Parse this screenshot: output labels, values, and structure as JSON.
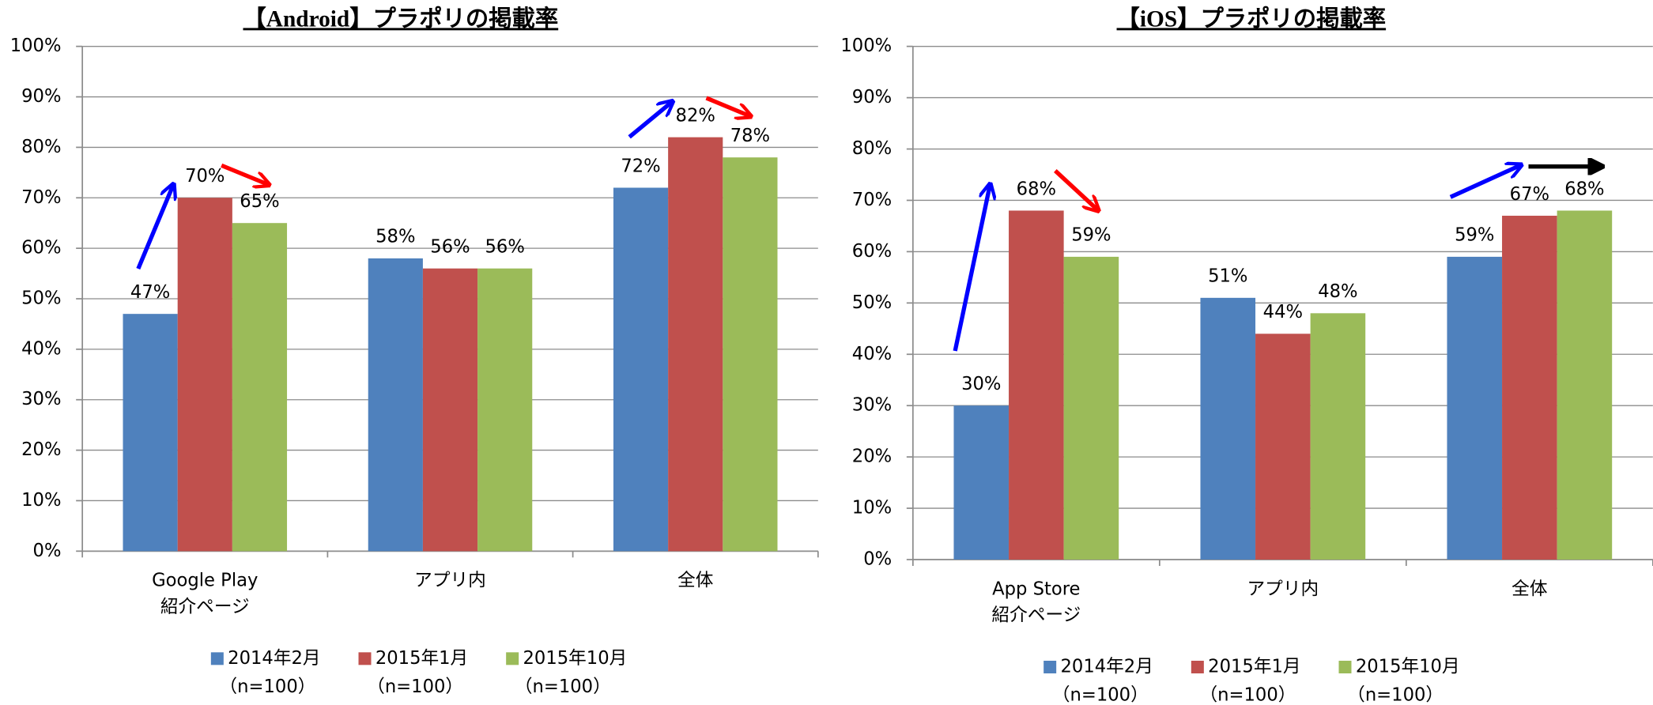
{
  "chart_data": [
    {
      "type": "bar",
      "title": "【Android】プラポリの掲載率",
      "categories": [
        "Google Play\n紹介ページ",
        "アプリ内",
        "全体"
      ],
      "series": [
        {
          "name": "2014年2月",
          "note": "（n=100）",
          "color": "#4f81bd",
          "values": [
            47,
            58,
            72
          ],
          "value_labels": [
            "47%",
            "58%",
            "72%"
          ]
        },
        {
          "name": "2015年1月",
          "note": "（n=100）",
          "color": "#c0504d",
          "values": [
            70,
            56,
            82
          ],
          "value_labels": [
            "70%",
            "56%",
            "82%"
          ]
        },
        {
          "name": "2015年10月",
          "note": "（n=100）",
          "color": "#9bbb59",
          "values": [
            65,
            56,
            78
          ],
          "value_labels": [
            "65%",
            "56%",
            "78%"
          ]
        }
      ],
      "ylim": [
        0,
        100
      ],
      "yticks": [
        {
          "value": 0,
          "label": "0%"
        },
        {
          "value": 10,
          "label": "10%"
        },
        {
          "value": 20,
          "label": "20%"
        },
        {
          "value": 30,
          "label": "30%"
        },
        {
          "value": 40,
          "label": "40%"
        },
        {
          "value": 50,
          "label": "50%"
        },
        {
          "value": 60,
          "label": "60%"
        },
        {
          "value": 70,
          "label": "70%"
        },
        {
          "value": 80,
          "label": "80%"
        },
        {
          "value": 90,
          "label": "90%"
        },
        {
          "value": 100,
          "label": "100%"
        }
      ],
      "grid": true,
      "legend": "bottom"
    },
    {
      "type": "bar",
      "title": "【iOS】プラポリの掲載率",
      "categories": [
        "App Store\n紹介ページ",
        "アプリ内",
        "全体"
      ],
      "series": [
        {
          "name": "2014年2月",
          "note": "（n=100）",
          "color": "#4f81bd",
          "values": [
            30,
            51,
            59
          ],
          "value_labels": [
            "30%",
            "51%",
            "59%"
          ]
        },
        {
          "name": "2015年1月",
          "note": "（n=100）",
          "color": "#c0504d",
          "values": [
            68,
            44,
            67
          ],
          "value_labels": [
            "68%",
            "44%",
            "67%"
          ]
        },
        {
          "name": "2015年10月",
          "note": "（n=100）",
          "color": "#9bbb59",
          "values": [
            59,
            48,
            68
          ],
          "value_labels": [
            "59%",
            "48%",
            "68%"
          ]
        }
      ],
      "ylim": [
        0,
        100
      ],
      "yticks": [
        {
          "value": 0,
          "label": "0%"
        },
        {
          "value": 10,
          "label": "10%"
        },
        {
          "value": 20,
          "label": "20%"
        },
        {
          "value": 30,
          "label": "30%"
        },
        {
          "value": 40,
          "label": "40%"
        },
        {
          "value": 50,
          "label": "50%"
        },
        {
          "value": 60,
          "label": "60%"
        },
        {
          "value": 70,
          "label": "70%"
        },
        {
          "value": 80,
          "label": "80%"
        },
        {
          "value": 90,
          "label": "90%"
        },
        {
          "value": 100,
          "label": "100%"
        }
      ],
      "grid": true,
      "legend": "bottom"
    }
  ]
}
